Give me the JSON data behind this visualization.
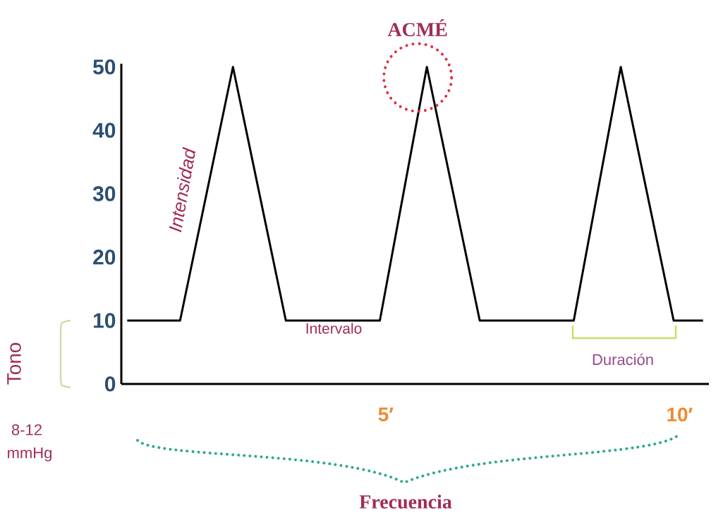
{
  "chart_data": {
    "type": "line",
    "x": [
      0.6,
      1.5,
      2.4,
      3.3,
      4.9,
      5.7,
      6.6,
      8.2,
      9.0,
      9.9,
      10.4
    ],
    "series": [
      {
        "color": "#000000",
        "values": [
          10,
          10,
          50,
          10,
          10,
          50,
          10,
          10,
          50,
          10,
          10
        ]
      }
    ],
    "xlim": [
      0.5,
      10.5
    ],
    "ylim": [
      0,
      50.5
    ],
    "xticks": [
      {
        "value": 5,
        "label": "5′"
      },
      {
        "value": 10,
        "label": "10′"
      }
    ],
    "yticks": [
      0,
      10,
      20,
      30,
      40,
      50
    ],
    "grid": false,
    "annotations": [
      {
        "text": "ACMÉ",
        "x": 5.7,
        "y": 50
      },
      "Intensidad",
      "Intervalo",
      "Duración",
      "Frecuencia",
      "Tono",
      "8-12",
      "mmHg"
    ]
  }
}
